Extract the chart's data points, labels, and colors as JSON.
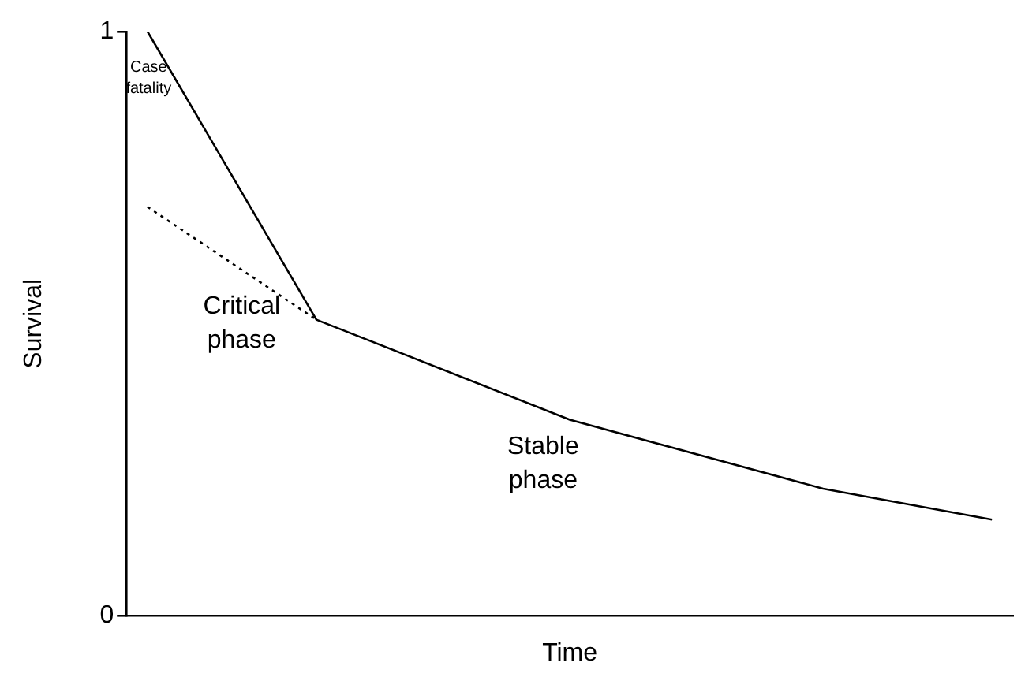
{
  "chart_data": {
    "type": "line",
    "xlabel": "Time",
    "ylabel": "Survival",
    "categories": [
      null,
      null,
      null,
      null,
      null,
      null,
      null,
      null,
      null,
      null,
      null,
      null,
      null,
      null,
      null,
      null,
      null,
      null,
      null,
      null,
      null
    ],
    "ylim": [
      0,
      1
    ],
    "yticks": [
      0,
      1
    ],
    "tick_labels": "y",
    "grid": false,
    "legend": false,
    "marker": "none",
    "series": [
      {
        "values": [
          1,
          null,
          null,
          null,
          0.507,
          null,
          null,
          null,
          null,
          null,
          0.336,
          null,
          null,
          null,
          null,
          null,
          0.218,
          null,
          null,
          null,
          0.165
        ],
        "color": "#000000",
        "line_style": "solid"
      },
      {
        "values": [
          0.7,
          null,
          null,
          null,
          0.507,
          null,
          null,
          null,
          null,
          null,
          null,
          null,
          null,
          null,
          null,
          null,
          null,
          null,
          null,
          null,
          null
        ],
        "color": "#000000",
        "line_style": "dotted"
      }
    ],
    "annotations": [
      "Case fatality",
      "Critical phase",
      "Stable phase"
    ]
  }
}
